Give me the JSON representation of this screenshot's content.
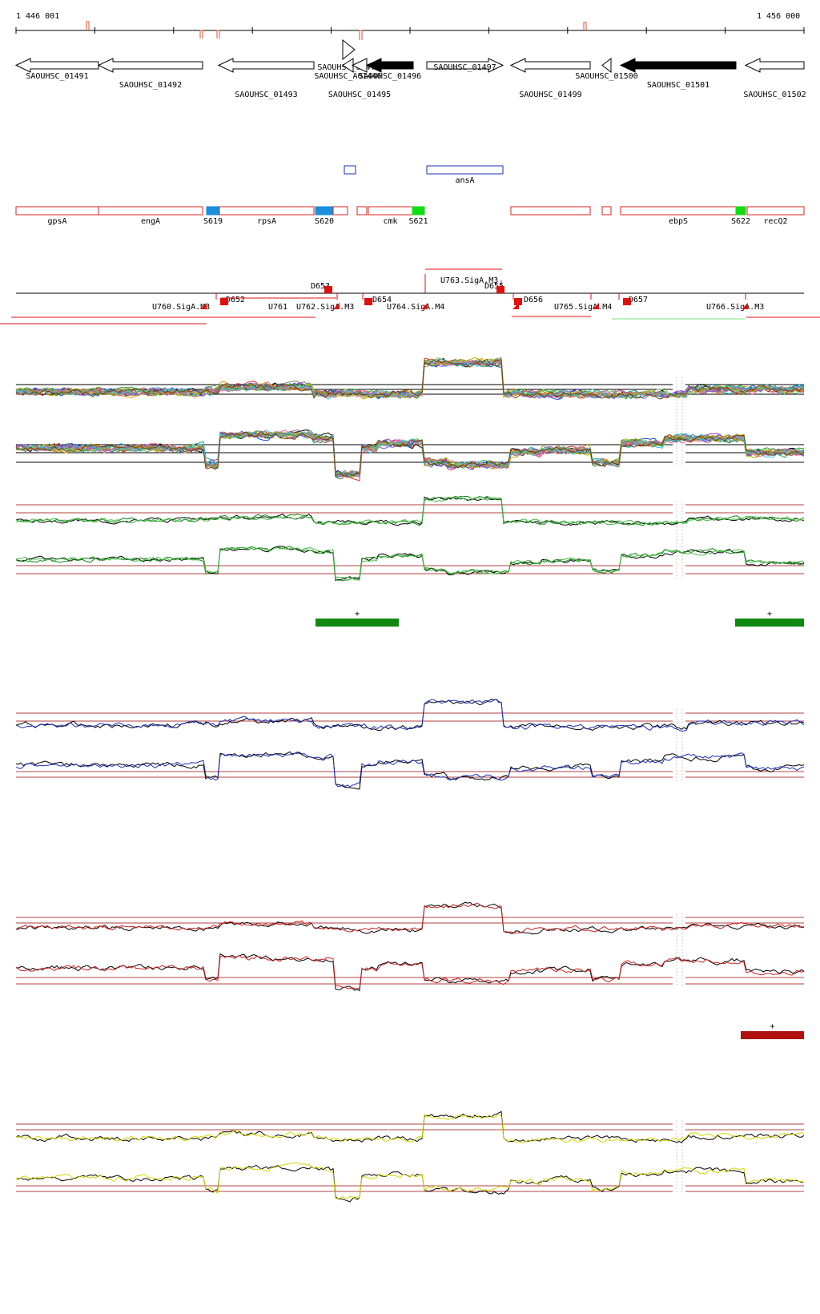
{
  "coords": {
    "start": "1 446 001",
    "end": "1 456 000"
  },
  "genes": [
    {
      "label": "SAOUHSC_01491",
      "dir": "left",
      "fill": "white",
      "x1": 20,
      "x2": 123,
      "labelRow": 1
    },
    {
      "label": "SAOUHSC_01492",
      "dir": "left",
      "fill": "white",
      "x1": 123,
      "x2": 253,
      "labelRow": 2
    },
    {
      "label": "SAOUHSC_01493",
      "dir": "left",
      "fill": "white",
      "x1": 273,
      "x2": 392,
      "labelRow": 3
    },
    {
      "label": "SAOUHSC_014..",
      "dir": "right",
      "fill": "white",
      "x1": 428,
      "x2": 443,
      "labelRow": 0
    },
    {
      "label": "SAOUHSC_A01446",
      "dir": "left",
      "fill": "white",
      "x1": 428,
      "x2": 441,
      "labelRow": 1
    },
    {
      "label": "SAOUHSC_01495",
      "dir": "left",
      "fill": "white",
      "x1": 440,
      "x2": 458,
      "labelRow": 3
    },
    {
      "label": "SAOUHSC_01496",
      "dir": "left",
      "fill": "black",
      "x1": 458,
      "x2": 516,
      "labelRow": 1
    },
    {
      "label": "SAOUHSC_01497",
      "dir": "right",
      "fill": "white",
      "x1": 533,
      "x2": 628,
      "labelRow": 0
    },
    {
      "label": "SAOUHSC_01499",
      "dir": "left",
      "fill": "white",
      "x1": 638,
      "x2": 737,
      "labelRow": 3
    },
    {
      "label": "SAOUHSC_01500",
      "dir": "left",
      "fill": "white",
      "x1": 752,
      "x2": 763,
      "labelRow": 1
    },
    {
      "label": "SAOUHSC_01501",
      "dir": "left",
      "fill": "black",
      "x1": 775,
      "x2": 919,
      "labelRow": 2
    },
    {
      "label": "SAOUHSC_01502",
      "dir": "left",
      "fill": "white",
      "x1": 931,
      "x2": 1004,
      "labelRow": 3
    }
  ],
  "blue_features": [
    {
      "label": "",
      "x1": 430,
      "x2": 444
    },
    {
      "label": "ansA",
      "x1": 533,
      "x2": 628
    }
  ],
  "red_features": [
    {
      "label": "gpsA",
      "x1": 20,
      "x2": 123,
      "kind": "box"
    },
    {
      "label": "engA",
      "x1": 123,
      "x2": 253,
      "kind": "box"
    },
    {
      "label": "S619",
      "x1": 258,
      "x2": 274,
      "kind": "blue"
    },
    {
      "label": "rpsA",
      "x1": 274,
      "x2": 392,
      "kind": "box"
    },
    {
      "label": "S620",
      "x1": 394,
      "x2": 416,
      "kind": "blue"
    },
    {
      "label": "",
      "x1": 416,
      "x2": 434,
      "kind": "box"
    },
    {
      "label": "",
      "x1": 446,
      "x2": 458,
      "kind": "box"
    },
    {
      "label": "cmk",
      "x1": 460,
      "x2": 515,
      "kind": "box"
    },
    {
      "label": "S621",
      "x1": 515,
      "x2": 530,
      "kind": "green"
    },
    {
      "label": "",
      "x1": 638,
      "x2": 737,
      "kind": "box"
    },
    {
      "label": "",
      "x1": 752,
      "x2": 763,
      "kind": "box"
    },
    {
      "label": "ebpS",
      "x1": 775,
      "x2": 919,
      "kind": "box"
    },
    {
      "label": "S622",
      "x1": 919,
      "x2": 931,
      "kind": "green"
    },
    {
      "label": "recQ2",
      "x1": 933,
      "x2": 1004,
      "kind": "box"
    }
  ],
  "tu_labels": [
    {
      "label": "U760.SigA.M3",
      "row": "low"
    },
    {
      "label": "D652",
      "row": "low"
    },
    {
      "label": "U761",
      "row": "low"
    },
    {
      "label": "U762.SigA.M3",
      "row": "low"
    },
    {
      "label": "D653",
      "row": "mid"
    },
    {
      "label": "D654",
      "row": "low"
    },
    {
      "label": "U764.SigA.M4",
      "row": "low"
    },
    {
      "label": "U763.SigA.M3",
      "row": "top"
    },
    {
      "label": "D655",
      "row": "mid"
    },
    {
      "label": "D656",
      "row": "low"
    },
    {
      "label": "U765.SigA.M4",
      "row": "low"
    },
    {
      "label": "D657",
      "row": "low"
    },
    {
      "label": "U766.SigA.M3",
      "row": "low"
    }
  ],
  "tracks": [
    {
      "name": "multi-condition",
      "color": "#888888",
      "plus_bars": []
    },
    {
      "name": "green-track",
      "color": "#118811",
      "plus_bars": [
        "+",
        "+"
      ]
    },
    {
      "name": "blue-track",
      "color": "#1a2fb8",
      "plus_bars": []
    },
    {
      "name": "red-track",
      "color": "#cc2020",
      "plus_bars": [
        "+"
      ]
    },
    {
      "name": "yellow-track",
      "color": "#d6d600",
      "plus_bars": []
    }
  ]
}
